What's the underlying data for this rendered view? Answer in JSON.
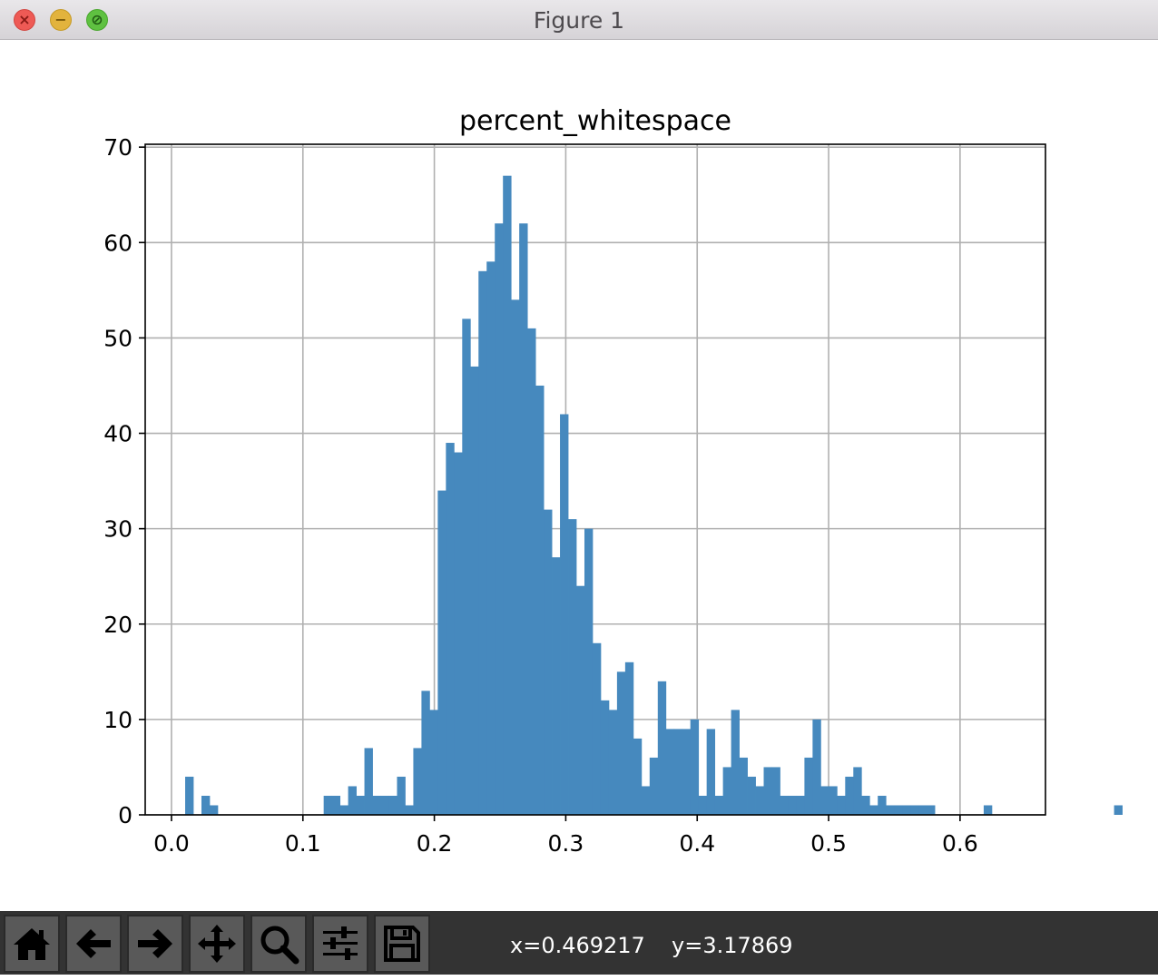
{
  "window": {
    "title": "Figure 1"
  },
  "toolbar": {
    "buttons": [
      {
        "icon": "home-icon"
      },
      {
        "icon": "back-arrow-icon"
      },
      {
        "icon": "forward-arrow-icon"
      },
      {
        "icon": "pan-move-icon"
      },
      {
        "icon": "zoom-magnifier-icon"
      },
      {
        "icon": "configure-subplots-icon"
      },
      {
        "icon": "save-floppy-icon"
      }
    ],
    "coord_x": "x=0.469217",
    "coord_y": "y=3.17869"
  },
  "chart_data": {
    "type": "bar",
    "title": "percent_whitespace",
    "xlabel": "",
    "ylabel": "",
    "xlim": [
      -0.02,
      0.665
    ],
    "ylim": [
      0,
      70.3
    ],
    "xticks": [
      0.0,
      0.1,
      0.2,
      0.3,
      0.4,
      0.5,
      0.6
    ],
    "xtick_labels": [
      "0.0",
      "0.1",
      "0.2",
      "0.3",
      "0.4",
      "0.5",
      "0.6"
    ],
    "yticks": [
      0,
      10,
      20,
      30,
      40,
      50,
      60,
      70
    ],
    "ytick_labels": [
      "0",
      "10",
      "20",
      "30",
      "40",
      "50",
      "60",
      "70"
    ],
    "grid": true,
    "bar_color": "#4689be",
    "bin_start": 0.0104,
    "bin_width": 0.0062,
    "counts": [
      4,
      0,
      2,
      1,
      0,
      0,
      0,
      0,
      0,
      0,
      0,
      0,
      0,
      0,
      0,
      0,
      0,
      2,
      2,
      1,
      3,
      2,
      7,
      2,
      2,
      2,
      4,
      1,
      7,
      13,
      11,
      34,
      39,
      38,
      52,
      47,
      57,
      58,
      62,
      67,
      54,
      62,
      51,
      45,
      32,
      27,
      42,
      31,
      24,
      30,
      18,
      12,
      11,
      15,
      16,
      8,
      3,
      6,
      14,
      9,
      9,
      9,
      10,
      2,
      9,
      2,
      5,
      11,
      6,
      4,
      3,
      5,
      5,
      2,
      2,
      2,
      6,
      10,
      3,
      3,
      2,
      4,
      5,
      2,
      1,
      2,
      1,
      1,
      1,
      1,
      1,
      1,
      0,
      0,
      0,
      0,
      0,
      0,
      1,
      0,
      0,
      0,
      0,
      0,
      0,
      0,
      0,
      0,
      0,
      0,
      0,
      0,
      0,
      0,
      1
    ]
  }
}
